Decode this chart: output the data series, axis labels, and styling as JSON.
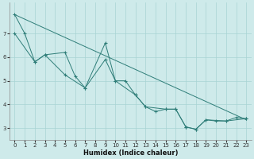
{
  "xlabel": "Humidex (Indice chaleur)",
  "bg_color": "#ceeaea",
  "grid_color": "#a8d4d4",
  "line_color": "#2e7d78",
  "xlim": [
    -0.5,
    23.5
  ],
  "ylim": [
    2.5,
    8.3
  ],
  "yticks": [
    3,
    4,
    5,
    6,
    7
  ],
  "xticks": [
    0,
    1,
    2,
    3,
    4,
    5,
    6,
    7,
    8,
    9,
    10,
    11,
    12,
    13,
    14,
    15,
    16,
    17,
    18,
    19,
    20,
    21,
    22,
    23
  ],
  "series1": [
    [
      0,
      7.8
    ],
    [
      1,
      7.0
    ],
    [
      2,
      5.8
    ],
    [
      3,
      6.1
    ],
    [
      5,
      6.2
    ],
    [
      6,
      5.2
    ],
    [
      7,
      4.7
    ],
    [
      9,
      6.6
    ],
    [
      10,
      5.0
    ],
    [
      11,
      5.0
    ],
    [
      12,
      4.4
    ],
    [
      13,
      3.9
    ],
    [
      14,
      3.7
    ],
    [
      15,
      3.8
    ],
    [
      16,
      3.8
    ],
    [
      17,
      3.05
    ],
    [
      18,
      2.95
    ],
    [
      19,
      3.35
    ],
    [
      20,
      3.3
    ],
    [
      21,
      3.3
    ],
    [
      22,
      3.45
    ],
    [
      23,
      3.4
    ]
  ],
  "series2": [
    [
      0,
      7.8
    ],
    [
      23,
      3.35
    ]
  ],
  "series3": [
    [
      0,
      7.0
    ],
    [
      2,
      5.8
    ],
    [
      3,
      6.1
    ],
    [
      5,
      5.25
    ],
    [
      7,
      4.7
    ],
    [
      9,
      5.9
    ],
    [
      10,
      5.0
    ],
    [
      12,
      4.4
    ],
    [
      13,
      3.9
    ],
    [
      15,
      3.8
    ],
    [
      16,
      3.8
    ],
    [
      17,
      3.05
    ],
    [
      18,
      2.95
    ],
    [
      19,
      3.35
    ],
    [
      21,
      3.3
    ],
    [
      23,
      3.4
    ]
  ]
}
